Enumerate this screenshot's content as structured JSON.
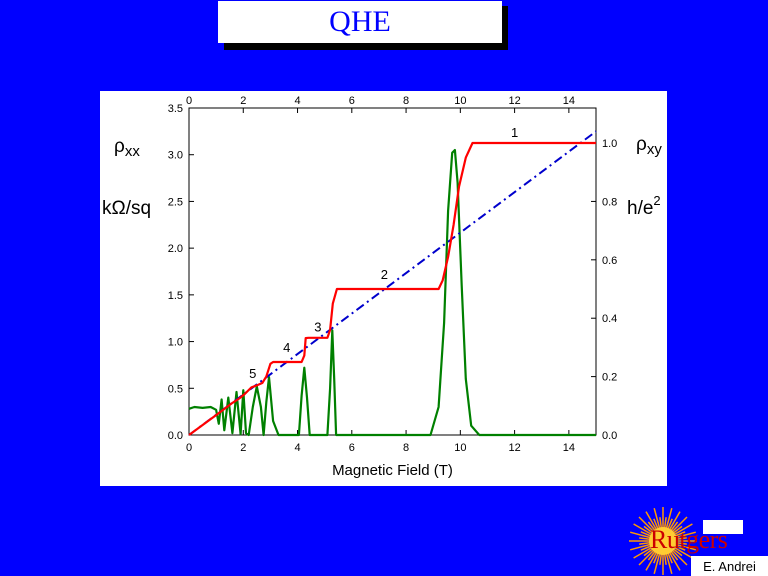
{
  "slide": {
    "title": "QHE",
    "author": "E. Andrei",
    "logo_text": "Rutgers"
  },
  "colors": {
    "background": "#0000ff",
    "rho_xy": "#ff0000",
    "rho_xx": "#008000",
    "classical": "#0000cc"
  },
  "labels": {
    "left_symbol": "ρ",
    "left_sub": "xx",
    "left_unit": "kΩ/sq",
    "right_symbol": "ρ",
    "right_sub": "xy",
    "right_unit": "h/e",
    "right_unit_sup": "2"
  },
  "chart_data": {
    "type": "line",
    "xlabel": "Magnetic Field  (T)",
    "xlim": [
      0,
      15
    ],
    "x_ticks": [
      "0",
      "2",
      "4",
      "6",
      "8",
      "10",
      "12",
      "14"
    ],
    "ylim_left": [
      0,
      3.5
    ],
    "y_ticks_left": [
      "0.0",
      "0.5",
      "1.0",
      "1.5",
      "2.0",
      "2.5",
      "3.0",
      "3.5"
    ],
    "ylim_right": [
      0,
      1.12
    ],
    "y_ticks_right": [
      "0.0",
      "0.2",
      "0.4",
      "0.6",
      "0.8",
      "1.0"
    ],
    "plateau_labels": [
      {
        "text": "1",
        "x": 12.0,
        "y": 1.02
      },
      {
        "text": "2",
        "x": 7.2,
        "y": 0.535
      },
      {
        "text": "3",
        "x": 4.75,
        "y": 0.355
      },
      {
        "text": "4",
        "x": 3.6,
        "y": 0.285
      },
      {
        "text": "5",
        "x": 2.35,
        "y": 0.195
      }
    ],
    "series": [
      {
        "axis": "right",
        "style": "solid",
        "color": "#ff0000",
        "x": [
          0,
          1.0,
          1.6,
          1.85,
          2.05,
          2.3,
          2.5,
          2.7,
          2.85,
          3.0,
          3.1,
          4.15,
          4.25,
          4.3,
          4.4,
          5.1,
          5.2,
          5.3,
          5.45,
          9.2,
          9.35,
          9.55,
          9.75,
          9.95,
          10.2,
          10.45,
          15
        ],
        "y": [
          0,
          0.068,
          0.11,
          0.125,
          0.14,
          0.163,
          0.17,
          0.178,
          0.2,
          0.244,
          0.25,
          0.25,
          0.272,
          0.332,
          0.333,
          0.333,
          0.36,
          0.45,
          0.5,
          0.5,
          0.53,
          0.61,
          0.72,
          0.85,
          0.95,
          1.0,
          1.0
        ]
      },
      {
        "axis": "right",
        "style": "dashdot",
        "color": "#0000cc",
        "x": [
          0,
          15
        ],
        "y": [
          0,
          1.04
        ]
      },
      {
        "axis": "left",
        "style": "solid",
        "color": "#008000",
        "x": [
          0,
          0.2,
          0.5,
          0.8,
          1.0,
          1.1,
          1.2,
          1.3,
          1.45,
          1.6,
          1.75,
          1.9,
          2.0,
          2.1,
          2.2,
          2.35,
          2.5,
          2.65,
          2.75,
          2.85,
          2.95,
          3.1,
          3.3,
          4.05,
          4.15,
          4.25,
          4.35,
          4.45,
          5.1,
          5.2,
          5.28,
          5.35,
          5.42,
          5.55,
          8.9,
          9.2,
          9.4,
          9.55,
          9.7,
          9.8,
          9.9,
          10.05,
          10.2,
          10.4,
          10.7,
          15
        ],
        "y": [
          0.28,
          0.3,
          0.29,
          0.3,
          0.27,
          0.12,
          0.38,
          0.05,
          0.4,
          0.02,
          0.46,
          0.01,
          0.48,
          0.02,
          0.0,
          0.3,
          0.52,
          0.3,
          0.0,
          0.35,
          0.62,
          0.15,
          0.0,
          0.0,
          0.42,
          0.72,
          0.4,
          0.0,
          0.0,
          0.5,
          1.12,
          0.6,
          0.0,
          0.0,
          0.0,
          0.3,
          1.2,
          2.4,
          3.02,
          3.05,
          2.7,
          1.6,
          0.6,
          0.1,
          0.0,
          0.0
        ]
      }
    ]
  }
}
